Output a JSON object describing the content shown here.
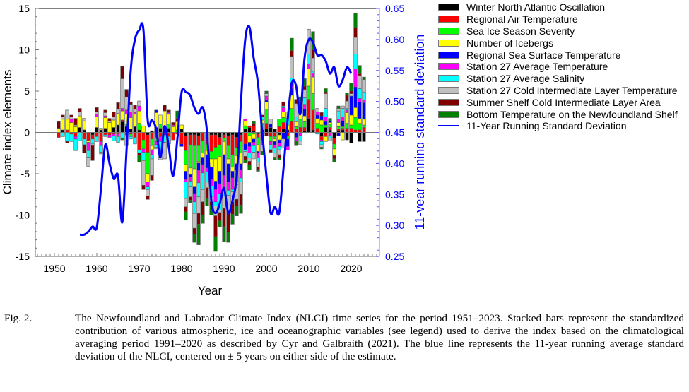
{
  "chart_data": {
    "type": "bar",
    "subtype": "stacked-bar-with-line",
    "title": "",
    "xlabel": "Year",
    "ylabel": "Climate index elements",
    "y2label": "11-year running standard deviation",
    "xlim": [
      1944,
      2027
    ],
    "ylim": [
      -15,
      15
    ],
    "y2lim": [
      0.25,
      0.65
    ],
    "xticks": [
      1950,
      1960,
      1970,
      1980,
      1990,
      2000,
      2010,
      2020
    ],
    "yticks": [
      -15,
      -10,
      -5,
      0,
      5,
      10,
      15
    ],
    "y2ticks": [
      "0.25",
      "0.30",
      "0.35",
      "0.40",
      "0.45",
      "0.50",
      "0.55",
      "0.60",
      "0.65"
    ],
    "legend_position": "outside-right",
    "series": [
      {
        "name": "Winter North Atlantic Oscillation",
        "color": "#000000"
      },
      {
        "name": "Regional Air Temperature",
        "color": "#ff0000"
      },
      {
        "name": "Sea Ice Season Severity",
        "color": "#00ff00"
      },
      {
        "name": "Number of Icebergs",
        "color": "#ffff00"
      },
      {
        "name": "Regional Sea Surface Temperature",
        "color": "#0000ff"
      },
      {
        "name": "Station 27 Average Temperature",
        "color": "#ff00ff"
      },
      {
        "name": "Station 27 Average Salinity",
        "color": "#00ffff"
      },
      {
        "name": "Station 27 Cold Intermediate Layer Temperature",
        "color": "#c0c0c0"
      },
      {
        "name": "Summer Shelf Cold Intermediate Layer Area",
        "color": "#800000"
      },
      {
        "name": "Bottom Temperature on the Newfoundland Shelf",
        "color": "#008000"
      }
    ],
    "line": {
      "name": "11-Year Running Standard Deviation",
      "color": "#0000ff",
      "x": [
        1956,
        1957,
        1958,
        1959,
        1960,
        1961,
        1962,
        1963,
        1964,
        1965,
        1966,
        1967,
        1968,
        1969,
        1970,
        1971,
        1972,
        1973,
        1974,
        1975,
        1976,
        1977,
        1978,
        1979,
        1980,
        1981,
        1982,
        1983,
        1984,
        1985,
        1986,
        1987,
        1988,
        1989,
        1990,
        1991,
        1992,
        1993,
        1994,
        1995,
        1996,
        1997,
        1998,
        1999,
        2000,
        2001,
        2002,
        2003,
        2004,
        2005,
        2006,
        2007,
        2008,
        2009,
        2010,
        2011,
        2012,
        2013,
        2014,
        2015,
        2016,
        2017,
        2018,
        2019,
        2020
      ],
      "values": [
        0.285,
        0.285,
        0.29,
        0.298,
        0.297,
        0.36,
        0.43,
        0.4,
        0.375,
        0.38,
        0.305,
        0.42,
        0.55,
        0.6,
        0.615,
        0.615,
        0.47,
        0.47,
        0.455,
        0.41,
        0.46,
        0.425,
        0.38,
        0.44,
        0.515,
        0.515,
        0.51,
        0.49,
        0.48,
        0.49,
        0.45,
        0.34,
        0.32,
        0.335,
        0.36,
        0.32,
        0.34,
        0.38,
        0.5,
        0.6,
        0.62,
        0.57,
        0.53,
        0.45,
        0.38,
        0.32,
        0.33,
        0.32,
        0.39,
        0.47,
        0.53,
        0.525,
        0.48,
        0.57,
        0.6,
        0.595,
        0.575,
        0.575,
        0.565,
        0.545,
        0.555,
        0.525,
        0.535,
        0.555,
        0.545
      ]
    },
    "years": [
      1951,
      1952,
      1953,
      1954,
      1955,
      1956,
      1957,
      1958,
      1959,
      1960,
      1961,
      1962,
      1963,
      1964,
      1965,
      1966,
      1967,
      1968,
      1969,
      1970,
      1971,
      1972,
      1973,
      1974,
      1975,
      1976,
      1977,
      1978,
      1979,
      1980,
      1981,
      1982,
      1983,
      1984,
      1985,
      1986,
      1987,
      1988,
      1989,
      1990,
      1991,
      1992,
      1993,
      1994,
      1995,
      1996,
      1997,
      1998,
      1999,
      2000,
      2001,
      2002,
      2003,
      2004,
      2005,
      2006,
      2007,
      2008,
      2009,
      2010,
      2011,
      2012,
      2013,
      2014,
      2015,
      2016,
      2017,
      2018,
      2019,
      2020,
      2021,
      2022,
      2023
    ],
    "stacks": [
      [
        0,
        -0.6,
        0,
        0.5,
        0,
        0,
        0,
        0,
        0.8,
        0
      ],
      [
        0.3,
        0,
        0,
        1.3,
        0,
        0,
        -0.5,
        0.3,
        0.2,
        0
      ],
      [
        0,
        0.3,
        0,
        1.3,
        0,
        0,
        -1.1,
        1.1,
        -0.2,
        0
      ],
      [
        0,
        -0.2,
        0,
        1.2,
        0,
        0.4,
        -0.9,
        0.3,
        0.2,
        0
      ],
      [
        0,
        -0.5,
        0,
        0.7,
        0,
        -0.3,
        -1.4,
        0.2,
        0.8,
        0
      ],
      [
        0.6,
        0,
        0,
        1.4,
        0,
        0,
        -1.0,
        0.5,
        0.4,
        0
      ],
      [
        0.3,
        -0.8,
        0,
        1.1,
        0,
        0,
        -0.7,
        0.3,
        -1.0,
        0
      ],
      [
        0,
        -1.0,
        0,
        -0.2,
        0,
        -1.0,
        -0.8,
        -1.1,
        0,
        0
      ],
      [
        -0.3,
        -0.5,
        0,
        0,
        0,
        0,
        -0.6,
        -0.2,
        -1.8,
        0
      ],
      [
        0.6,
        -0.5,
        0,
        1.3,
        0,
        0.3,
        -0.6,
        0.3,
        0.5,
        0
      ],
      [
        0.3,
        -1.1,
        0,
        0.2,
        0,
        -0.5,
        -0.8,
        -0.2,
        0,
        0
      ],
      [
        0.5,
        -0.3,
        0,
        1.3,
        0,
        0.2,
        -0.2,
        0.4,
        0.3,
        0
      ],
      [
        0,
        -0.3,
        0,
        1.2,
        0,
        -0.3,
        0,
        0.2,
        0.3,
        0
      ],
      [
        0.6,
        -0.2,
        0,
        0.9,
        0,
        -0.2,
        -0.6,
        0.4,
        0.6,
        0
      ],
      [
        0.9,
        -0.2,
        0,
        1.4,
        0,
        -0.3,
        -0.7,
        0.5,
        0.8,
        0
      ],
      [
        1.3,
        0.2,
        0,
        1.1,
        0,
        0.3,
        -0.7,
        3.6,
        1.5,
        -0.2
      ],
      [
        0.7,
        -0.3,
        0.3,
        1.2,
        0,
        0.5,
        -1.3,
        1.6,
        0.9,
        0
      ],
      [
        0.4,
        -0.2,
        -0.3,
        1.4,
        0,
        0.7,
        -0.3,
        0.9,
        0.3,
        0
      ],
      [
        0.7,
        -0.6,
        0,
        1.5,
        0,
        0.2,
        -0.8,
        0.4,
        0.5,
        0
      ],
      [
        0.3,
        -2.1,
        0.8,
        1.5,
        0,
        0.6,
        -0.4,
        0.6,
        -0.3,
        -0.8
      ],
      [
        0,
        -0.9,
        -1.1,
        0.8,
        0,
        -0.4,
        -1.0,
        -3.0,
        -0.5,
        0
      ],
      [
        -0.3,
        -2.1,
        -2.6,
        -1.0,
        0,
        -0.6,
        -0.3,
        -0.8,
        -0.4,
        0
      ],
      [
        0.2,
        -0.8,
        -0.8,
        -0.5,
        0,
        -0.6,
        -0.5,
        -2.0,
        -0.6,
        0
      ],
      [
        0.6,
        -0.7,
        -0.4,
        1.8,
        0.3,
        -0.4,
        -0.3,
        -0.2,
        0,
        0
      ],
      [
        0.5,
        -0.5,
        0.5,
        1.1,
        0,
        -0.6,
        -1.1,
        -1.1,
        0,
        0
      ],
      [
        0.8,
        -0.3,
        0,
        1.8,
        0,
        0,
        -0.9,
        -2.0,
        0.7,
        0
      ],
      [
        0.5,
        -0.5,
        0.5,
        1.2,
        0,
        0.2,
        -0.5,
        -0.4,
        0.3,
        0
      ],
      [
        0,
        -0.9,
        0,
        0.7,
        0,
        0.2,
        0,
        0,
        0.3,
        0
      ],
      [
        0,
        -0.2,
        0.3,
        1.0,
        0,
        0,
        0,
        0,
        0.4,
        0.9
      ],
      [
        0.4,
        -1.4,
        0,
        0.5,
        -0.3,
        0,
        0,
        0,
        0,
        0
      ],
      [
        -0.4,
        -1.8,
        -1.7,
        -0.8,
        -1.0,
        -0.3,
        -2.0,
        -1.0,
        -0.6,
        -1.0
      ],
      [
        -0.3,
        -1.2,
        -2.8,
        -0.8,
        -0.3,
        -0.5,
        -0.7,
        -1.2,
        -0.4,
        -0.3
      ],
      [
        -0.3,
        -1.3,
        -2.8,
        -2.2,
        -0.8,
        -1.0,
        -1.4,
        -1.8,
        -0.7,
        -1.0
      ],
      [
        -0.4,
        -1.2,
        -1.9,
        -0.2,
        -0.9,
        -1.5,
        -1.7,
        -2.0,
        -1.3,
        -2.5
      ],
      [
        0,
        -1.0,
        -1.5,
        -0.5,
        -0.9,
        -1.0,
        -2.0,
        -1.5,
        -1.6,
        -1.0
      ],
      [
        0,
        -1.4,
        -0.8,
        -0.5,
        -1.6,
        -0.5,
        -1.2,
        -0.7,
        -1.3,
        -0.9
      ],
      [
        -0.3,
        -2.0,
        -0.9,
        -1.0,
        -1.5,
        -0.8,
        -1.3,
        -0.6,
        -0.4,
        -1.2
      ],
      [
        -0.3,
        -1.5,
        -1.4,
        -2.7,
        -1.0,
        -1.5,
        -0.5,
        -1.2,
        -2.5,
        -1.8
      ],
      [
        -0.6,
        -0.9,
        -1.4,
        -1.8,
        -1.5,
        -1.2,
        -2.0,
        -0.3,
        -1.0,
        -0.7
      ],
      [
        -0.3,
        -0.4,
        -0.4,
        -1.6,
        -2.5,
        -1.5,
        -1.0,
        -1.5,
        -2.2,
        -1.8
      ],
      [
        -0.4,
        -1.2,
        -1.6,
        -0.6,
        -2.2,
        -1.0,
        -0.6,
        -2.0,
        -2.5,
        -1.2
      ],
      [
        -0.3,
        -2.4,
        -1.5,
        -0.5,
        -0.8,
        -1.4,
        -0.3,
        -1.2,
        -1.5,
        -1.2
      ],
      [
        -0.6,
        -1.2,
        -1.0,
        -1.0,
        -0.8,
        -1.3,
        -0.4,
        -1.8,
        -0.8,
        -1.2
      ],
      [
        -0.3,
        -0.8,
        -1.4,
        -1.3,
        -0.7,
        -1.0,
        -0.5,
        -1.5,
        -1.3,
        -1.0
      ],
      [
        0.4,
        -1.4,
        0.4,
        0.6,
        -0.7,
        0.2,
        -0.2,
        -0.6,
        -0.4,
        -0.4
      ],
      [
        0.6,
        0.2,
        -0.4,
        -0.8,
        -0.5,
        -0.8,
        -0.6,
        -0.4,
        -0.4,
        -0.6
      ],
      [
        0.2,
        0.6,
        -0.2,
        -0.6,
        -0.4,
        -0.4,
        -0.8,
        -0.8,
        0.3,
        0.2
      ],
      [
        -0.2,
        -0.4,
        -0.9,
        -0.8,
        -0.2,
        -0.6,
        -0.5,
        -0.6,
        -0.3,
        -0.2
      ],
      [
        0.3,
        -0.3,
        0.8,
        0.4,
        -0.6,
        -0.6,
        0.4,
        -0.8,
        0.2,
        -0.4
      ],
      [
        0.4,
        0.7,
        1.7,
        0.9,
        0.2,
        0.5,
        0,
        0.3,
        -0.4,
        0.3
      ],
      [
        0.6,
        -0.5,
        -0.6,
        0,
        0.4,
        -0.4,
        -0.6,
        0.6,
        -0.3,
        0
      ],
      [
        0.4,
        -0.5,
        -0.3,
        -0.3,
        -0.4,
        -0.4,
        -0.6,
        -0.5,
        0,
        -0.3
      ],
      [
        -0.3,
        0.7,
        0.9,
        -0.6,
        -0.4,
        -0.4,
        -0.4,
        -0.6,
        -0.4,
        -0.2
      ],
      [
        0.4,
        0.8,
        0.6,
        0.7,
        -0.8,
        0.5,
        0.2,
        -1.1,
        0.5,
        0
      ],
      [
        0.3,
        -0.4,
        -0.4,
        0.6,
        -0.9,
        -0.4,
        0.8,
        0.8,
        0,
        0
      ],
      [
        0,
        1.3,
        1.6,
        1.6,
        0.8,
        0.7,
        0.6,
        2.6,
        0.7,
        1.5
      ],
      [
        0,
        0.4,
        0.3,
        0.6,
        -0.6,
        -0.5,
        0.6,
        1.6,
        0.5,
        -0.5
      ],
      [
        0,
        0.6,
        1.0,
        0.8,
        0.5,
        -0.4,
        -0.6,
        -0.5,
        0.5,
        0.9
      ],
      [
        0.2,
        0.4,
        0.7,
        0.7,
        0.8,
        0.6,
        0.8,
        1.0,
        0.4,
        0.9
      ],
      [
        1.7,
        2.3,
        1.6,
        2.1,
        0,
        0.6,
        1.2,
        3.0,
        0,
        0
      ],
      [
        0.3,
        2.4,
        2.0,
        2.0,
        0,
        0.5,
        0.2,
        1.6,
        1.0,
        2.2
      ],
      [
        0,
        0.5,
        0.6,
        0.6,
        0.4,
        0.4,
        -0.2,
        0.4,
        0,
        0
      ],
      [
        -0.5,
        -0.4,
        0.9,
        0.6,
        0.5,
        -0.2,
        -0.4,
        -0.3,
        0.4,
        -0.2
      ],
      [
        0.6,
        -0.5,
        0.3,
        -0.6,
        0.4,
        0.6,
        1.0,
        1.8,
        0.2,
        0.4
      ],
      [
        0.3,
        0.3,
        0.4,
        0.2,
        0.2,
        -0.4,
        -0.3,
        -0.3,
        0,
        0.3
      ],
      [
        -0.7,
        -0.7,
        -0.6,
        -0.8,
        0,
        0,
        0,
        0,
        -0.4,
        -0.4
      ],
      [
        0.2,
        0.2,
        0.3,
        0.5,
        -0.4,
        0.4,
        1.0,
        0.3,
        0,
        0.3
      ],
      [
        0.3,
        0.2,
        0.2,
        -0.9,
        0.7,
        0.5,
        1.0,
        0.3,
        0,
        0
      ],
      [
        -0.9,
        0.5,
        0.6,
        1.3,
        0,
        0.3,
        0.2,
        0.9,
        0.7,
        0.3
      ],
      [
        -1.3,
        0.5,
        0.4,
        1.2,
        2.3,
        0,
        0,
        0.3,
        0.3,
        1.0
      ],
      [
        0,
        0.3,
        1.5,
        1.2,
        2.5,
        2.2,
        1.8,
        2.0,
        1.2,
        1.7
      ],
      [
        -1.1,
        0.3,
        0.8,
        0.6,
        2.0,
        0.4,
        1.2,
        1.6,
        0.2,
        1.0
      ],
      [
        -1.1,
        0.6,
        0.3,
        0.7,
        2.0,
        0.3,
        1.0,
        1.5,
        0,
        0.3
      ]
    ]
  },
  "legend": {
    "items": [
      {
        "label": "Winter North Atlantic Oscillation",
        "color": "#000000",
        "kind": "box"
      },
      {
        "label": "Regional Air Temperature",
        "color": "#ff0000",
        "kind": "box"
      },
      {
        "label": "Sea Ice Season Severity",
        "color": "#00ff00",
        "kind": "box"
      },
      {
        "label": "Number of Icebergs",
        "color": "#ffff00",
        "kind": "box"
      },
      {
        "label": "Regional Sea Surface Temperature",
        "color": "#0000ff",
        "kind": "box"
      },
      {
        "label": "Station 27 Average Temperature",
        "color": "#ff00ff",
        "kind": "box"
      },
      {
        "label": "Station 27 Average Salinity",
        "color": "#00ffff",
        "kind": "box"
      },
      {
        "label": "Station 27 Cold Intermediate Layer Temperature",
        "color": "#c0c0c0",
        "kind": "box"
      },
      {
        "label": "Summer Shelf Cold Intermediate Layer Area",
        "color": "#800000",
        "kind": "box"
      },
      {
        "label": "Bottom Temperature on the Newfoundland Shelf",
        "color": "#008000",
        "kind": "box"
      },
      {
        "label": "11-Year Running Standard Deviation",
        "color": "#0000ff",
        "kind": "line"
      }
    ]
  },
  "caption": {
    "label": "Fig. 2.",
    "text": "The Newfoundland and Labrador Climate Index (NLCI) time series for the period 1951–2023. Stacked bars represent the standardized contribution of various atmospheric, ice and oceanographic variables (see legend) used to derive the index based on the climatological averaging period 1991–2020 as described by Cyr and Galbraith (2021). The blue line represents the 11-year running average standard deviation of the NLCI, centered on ± 5 years on either side of the estimate."
  }
}
